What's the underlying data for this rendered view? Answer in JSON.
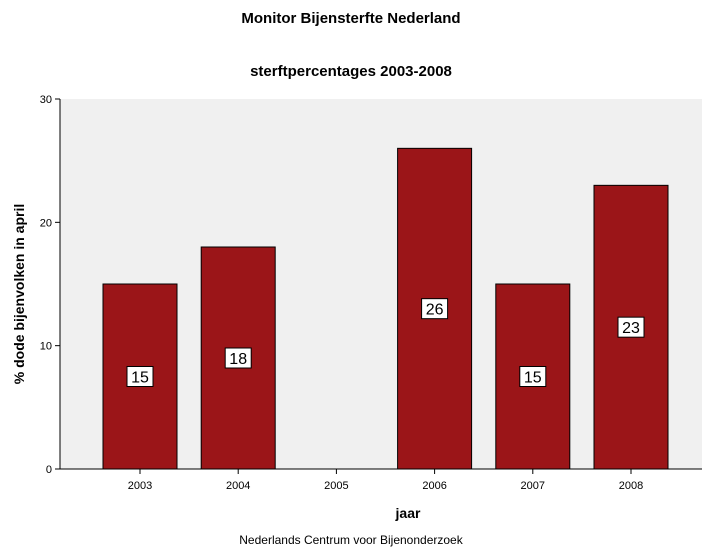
{
  "chart_data": {
    "type": "bar",
    "title": "Monitor Bijensterfte Nederland",
    "subtitle": "sterftpercentages 2003-2008",
    "xlabel": "jaar",
    "ylabel": "% dode bijenvolken in april",
    "categories": [
      "2003",
      "2004",
      "2005",
      "2006",
      "2007",
      "2008"
    ],
    "values": [
      15,
      18,
      null,
      26,
      15,
      23
    ],
    "data_labels": [
      "15",
      "18",
      "",
      "26",
      "15",
      "23"
    ],
    "ylim": [
      0,
      30
    ],
    "yticks": [
      "0",
      "10",
      "20",
      "30"
    ],
    "grid": false,
    "bar_color": "#9b1518",
    "plot_background": "#f0f0f0",
    "footer": "Nederlands Centrum voor Bijenonderzoek"
  }
}
